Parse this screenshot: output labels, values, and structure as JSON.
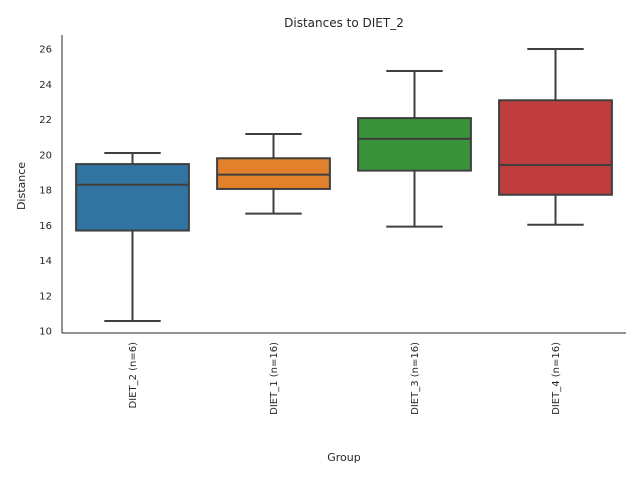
{
  "chart_data": {
    "type": "box",
    "title": "Distances to DIET_2",
    "xlabel": "Group",
    "ylabel": "Distance",
    "ylim": [
      9.9,
      26.85
    ],
    "yticks": [
      10,
      12,
      14,
      16,
      18,
      20,
      22,
      24,
      26
    ],
    "grid": false,
    "legend": "none",
    "categories": [
      "DIET_2 (n=6)",
      "DIET_1 (n=16)",
      "DIET_3 (n=16)",
      "DIET_4 (n=16)"
    ],
    "boxes": [
      {
        "label": "DIET_2 (n=6)",
        "whisker_low": 10.57,
        "q1": 15.7,
        "median": 18.3,
        "q3": 19.47,
        "whisker_high": 20.1,
        "color": "#3274a1"
      },
      {
        "label": "DIET_1 (n=16)",
        "whisker_low": 16.66,
        "q1": 18.06,
        "median": 18.87,
        "q3": 19.8,
        "whisker_high": 21.18,
        "color": "#e1812c"
      },
      {
        "label": "DIET_3 (n=16)",
        "whisker_low": 15.92,
        "q1": 19.1,
        "median": 20.9,
        "q3": 22.08,
        "whisker_high": 24.75,
        "color": "#3a923a"
      },
      {
        "label": "DIET_4 (n=16)",
        "whisker_low": 16.03,
        "q1": 17.73,
        "median": 19.42,
        "q3": 23.09,
        "whisker_high": 26.0,
        "color": "#c03d3e"
      }
    ]
  }
}
